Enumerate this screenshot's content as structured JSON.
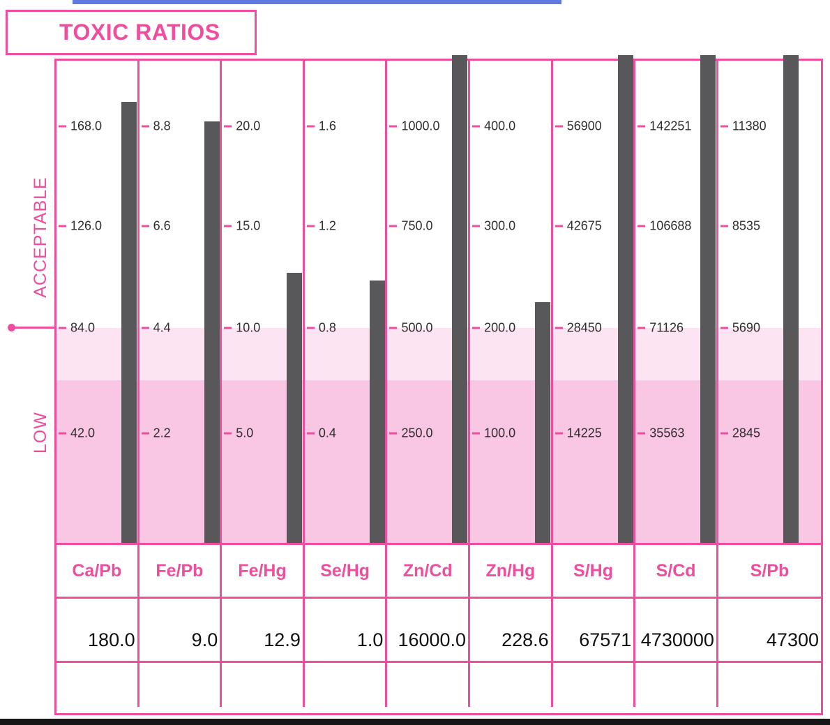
{
  "title": "TOXIC RATIOS",
  "side_labels": {
    "acceptable": "ACCEPTABLE",
    "low": "LOW"
  },
  "chart_data": {
    "type": "bar",
    "title": "TOXIC RATIOS",
    "categories": [
      "Ca/Pb",
      "Fe/Pb",
      "Fe/Hg",
      "Se/Hg",
      "Zn/Cd",
      "Zn/Hg",
      "S/Hg",
      "S/Cd",
      "S/Pb"
    ],
    "values": [
      180.0,
      9.0,
      12.9,
      1.0,
      16000.0,
      228.6,
      67571,
      4730000,
      47300
    ],
    "zones": [
      "ACCEPTABLE",
      "LOW"
    ],
    "grid": false,
    "legend": false,
    "columns": [
      {
        "ratio": "Ca/Pb",
        "axis_ticks": [
          168.0,
          126.0,
          84.0,
          42.0
        ],
        "tick_labels": [
          "168.0",
          "126.0",
          "84.0",
          "42.0"
        ],
        "value": 180.0,
        "value_label": "180.0"
      },
      {
        "ratio": "Fe/Pb",
        "axis_ticks": [
          8.8,
          6.6,
          4.4,
          2.2
        ],
        "tick_labels": [
          "8.8",
          "6.6",
          "4.4",
          "2.2"
        ],
        "value": 9.0,
        "value_label": "9.0"
      },
      {
        "ratio": "Fe/Hg",
        "axis_ticks": [
          20.0,
          15.0,
          10.0,
          5.0
        ],
        "tick_labels": [
          "20.0",
          "15.0",
          "10.0",
          "5.0"
        ],
        "value": 12.9,
        "value_label": "12.9"
      },
      {
        "ratio": "Se/Hg",
        "axis_ticks": [
          1.6,
          1.2,
          0.8,
          0.4
        ],
        "tick_labels": [
          "1.6",
          "1.2",
          "0.8",
          "0.4"
        ],
        "value": 1.0,
        "value_label": "1.0"
      },
      {
        "ratio": "Zn/Cd",
        "axis_ticks": [
          1000.0,
          750.0,
          500.0,
          250.0
        ],
        "tick_labels": [
          "1000.0",
          "750.0",
          "500.0",
          "250.0"
        ],
        "value": 16000.0,
        "value_label": "16000.0"
      },
      {
        "ratio": "Zn/Hg",
        "axis_ticks": [
          400.0,
          300.0,
          200.0,
          100.0
        ],
        "tick_labels": [
          "400.0",
          "300.0",
          "200.0",
          "100.0"
        ],
        "value": 228.6,
        "value_label": "228.6"
      },
      {
        "ratio": "S/Hg",
        "axis_ticks": [
          56900,
          42675,
          28450,
          14225
        ],
        "tick_labels": [
          "56900",
          "42675",
          "28450",
          "14225"
        ],
        "value": 67571,
        "value_label": "67571"
      },
      {
        "ratio": "S/Cd",
        "axis_ticks": [
          142251,
          106688,
          71126,
          35563
        ],
        "tick_labels": [
          "142251",
          "106688",
          "71126",
          "35563"
        ],
        "value": 4730000,
        "value_label": "4730000"
      },
      {
        "ratio": "S/Pb",
        "axis_ticks": [
          11380,
          8535,
          5690,
          2845
        ],
        "tick_labels": [
          "11380",
          "8535",
          "5690",
          "2845"
        ],
        "value": 47300,
        "value_label": "47300"
      }
    ]
  },
  "colors": {
    "pink": "#ef4d9d",
    "band_light_pink": "#fde4f2",
    "band_low_pink": "#f9c6e3",
    "bar_gray": "#58585a",
    "tick_text": "#2e2e2e",
    "value_text": "#101010",
    "top_line_blue": "#5e7ae0",
    "bottom_bar_black": "#161616"
  }
}
